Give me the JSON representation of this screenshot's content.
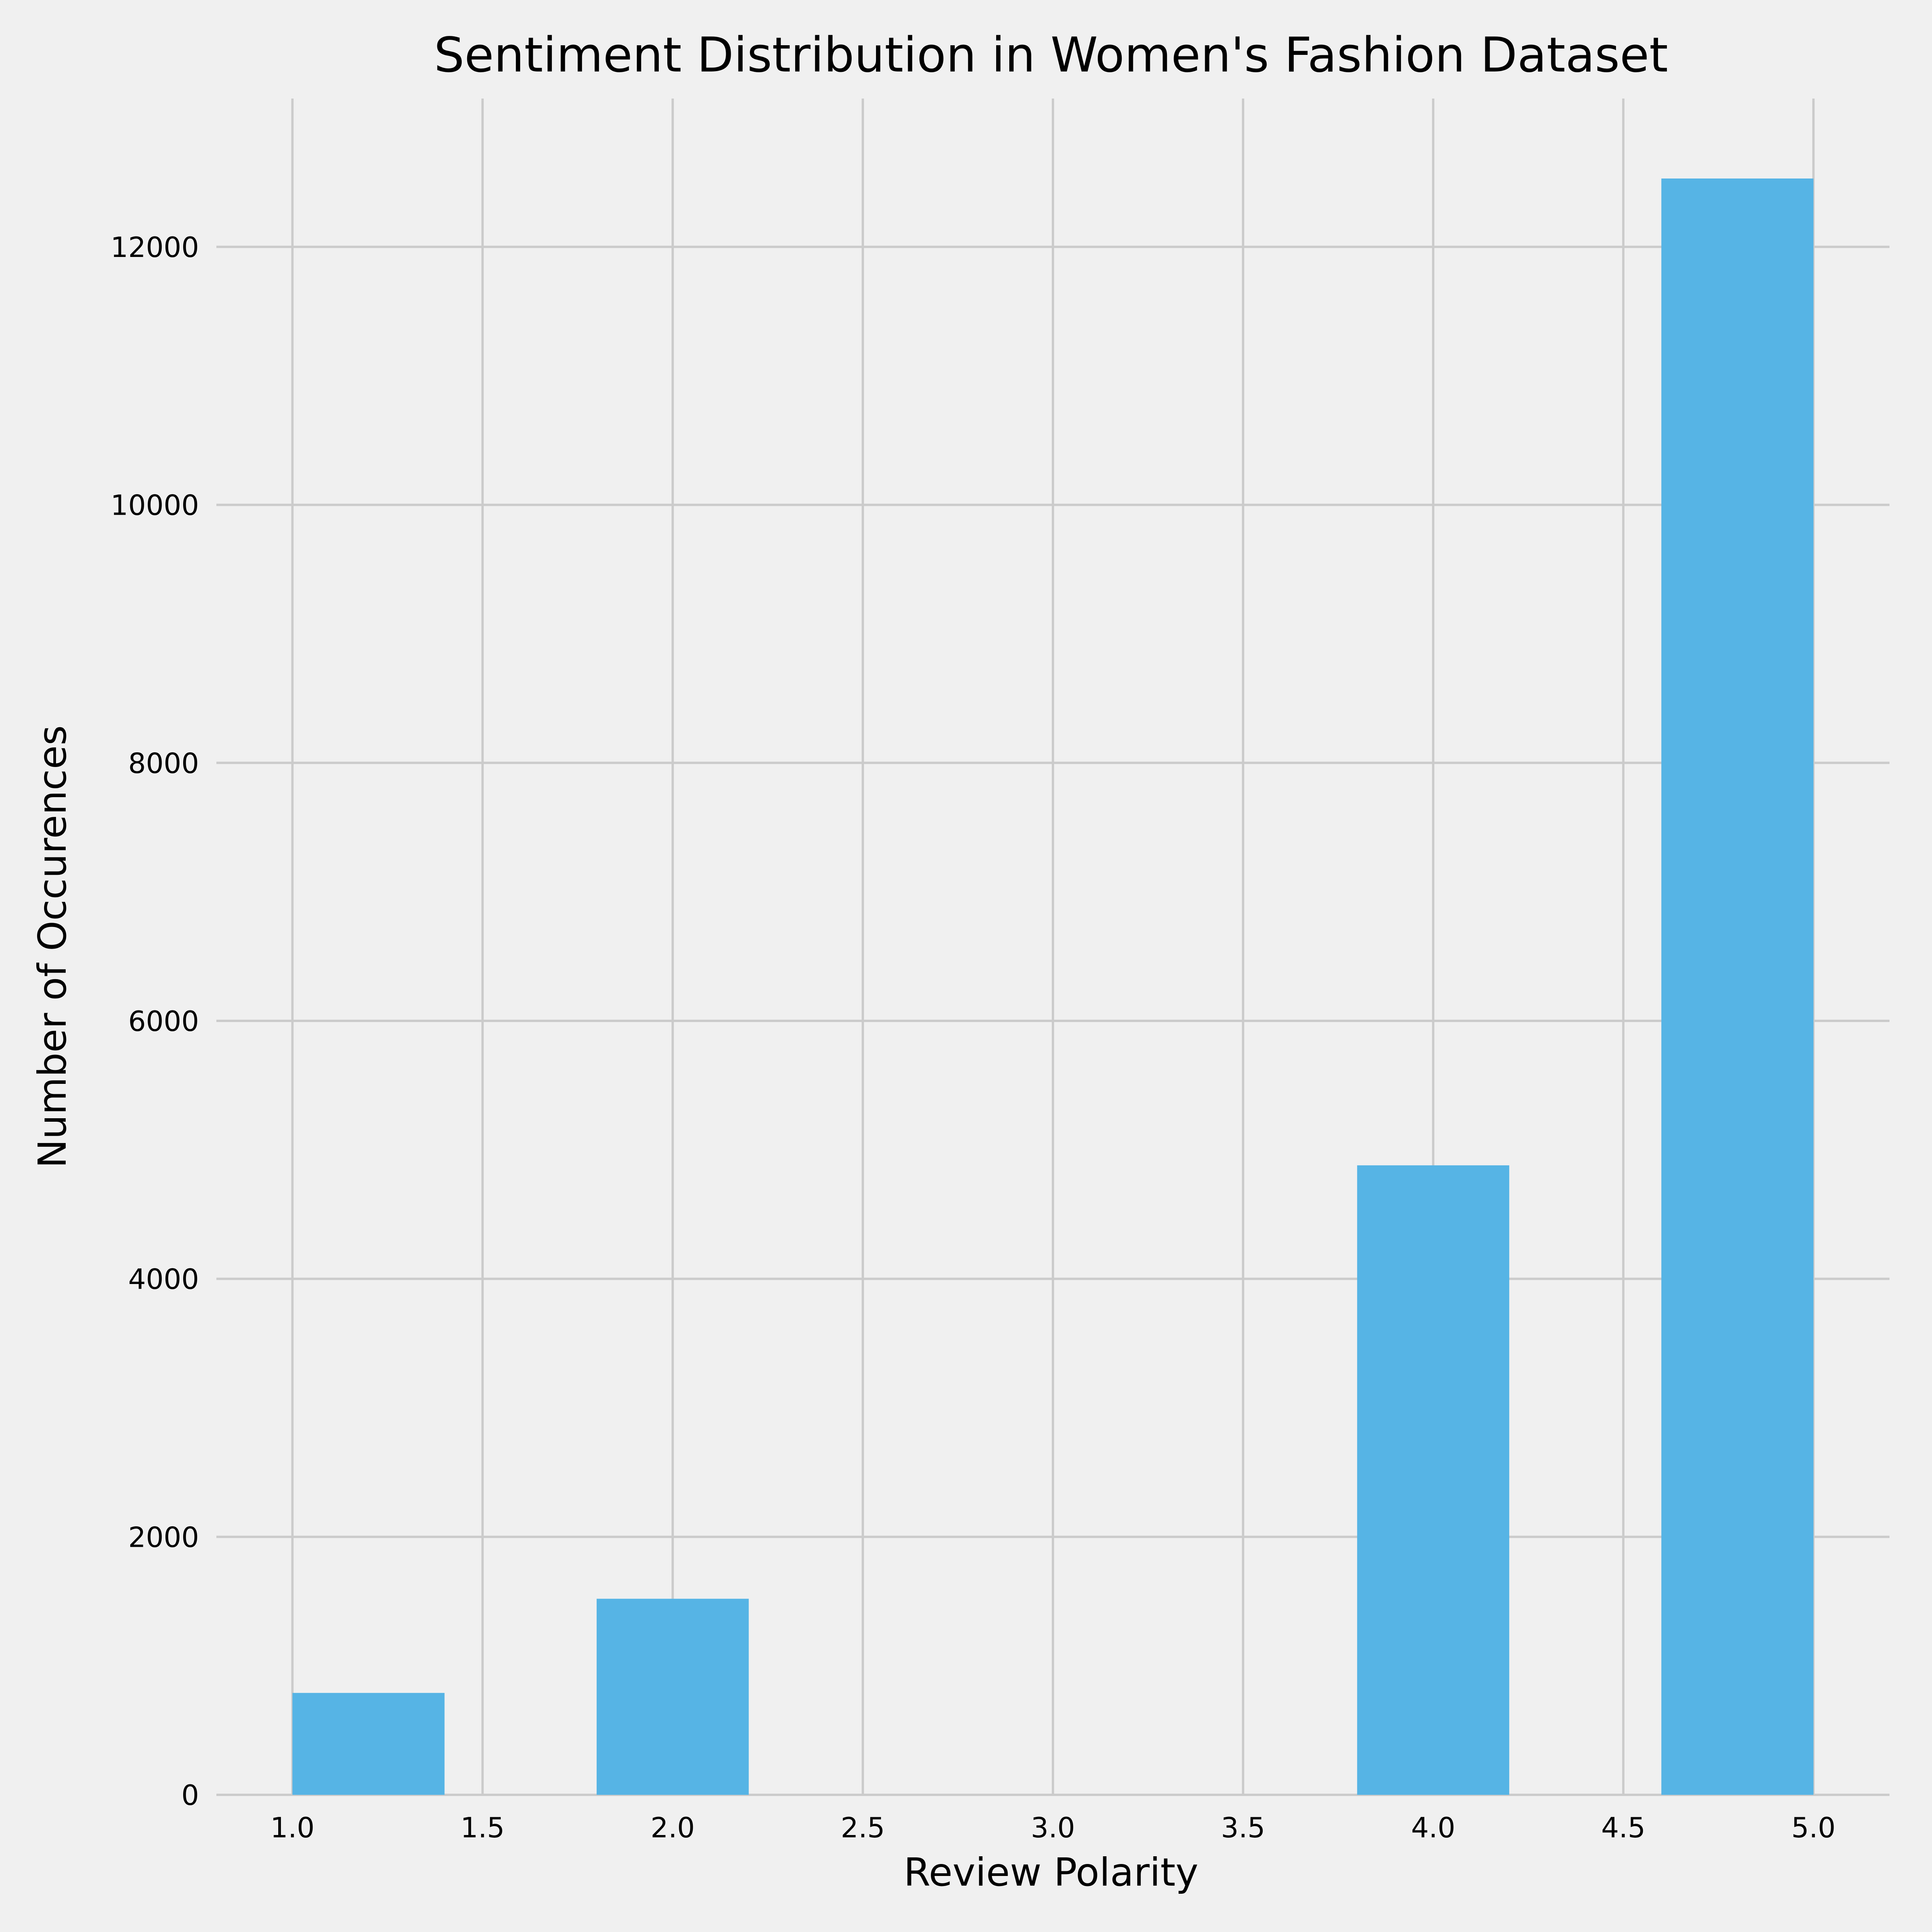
{
  "chart_data": {
    "type": "bar",
    "title": "Sentiment Distribution in Women's Fashion Dataset",
    "xlabel": "Review Polarity",
    "ylabel": "Number of Occurences",
    "xlim": [
      0.8,
      5.2
    ],
    "ylim": [
      0,
      13150
    ],
    "xticks": [
      "1.0",
      "1.5",
      "2.0",
      "2.5",
      "3.0",
      "3.5",
      "4.0",
      "4.5",
      "5.0"
    ],
    "xtick_values": [
      1.0,
      1.5,
      2.0,
      2.5,
      3.0,
      3.5,
      4.0,
      4.5,
      5.0
    ],
    "yticks": [
      "0",
      "2000",
      "4000",
      "6000",
      "8000",
      "10000",
      "12000"
    ],
    "ytick_values": [
      0,
      2000,
      4000,
      6000,
      8000,
      10000,
      12000
    ],
    "bins": [
      {
        "x_start": 1.0,
        "x_end": 1.4,
        "value": 790
      },
      {
        "x_start": 1.8,
        "x_end": 2.2,
        "value": 1520
      },
      {
        "x_start": 3.8,
        "x_end": 4.2,
        "value": 4880
      },
      {
        "x_start": 4.6,
        "x_end": 5.0,
        "value": 12530
      }
    ],
    "grid": true,
    "bar_color": "#56b4e5",
    "background_color": "#f0f0f0",
    "grid_color": "#cbcbcb"
  }
}
